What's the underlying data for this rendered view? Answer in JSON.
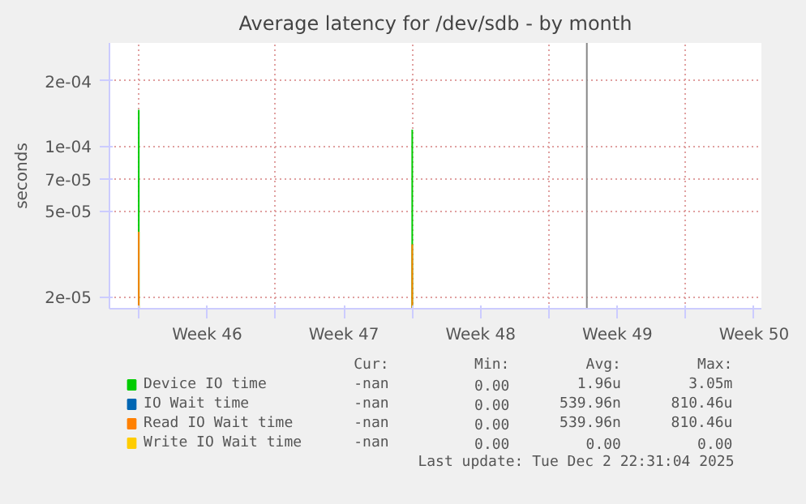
{
  "chart_data": {
    "type": "bar",
    "title": "Average latency for /dev/sdb - by month",
    "ylabel": "seconds",
    "x": [
      "2025-11-10T00:00",
      "2025-11-24T00:00"
    ],
    "series": [
      {
        "name": "Device IO time",
        "color": "#00cc00",
        "values": [
          0.000147,
          0.000119
        ]
      },
      {
        "name": "IO Wait time",
        "color": "#0066b3",
        "values": [
          null,
          null
        ]
      },
      {
        "name": "Read IO Wait time",
        "color": "#ff8000",
        "values": [
          4e-05,
          3.5e-05
        ]
      },
      {
        "name": "Write IO Wait time",
        "color": "#ffcc00",
        "values": [
          null,
          null
        ]
      }
    ],
    "log": "y",
    "ylim": [
      1.76e-05,
      0.0003
    ],
    "yticks": [
      {
        "value": 2e-05,
        "label": "2e-05"
      },
      {
        "value": 5e-05,
        "label": "5e-05"
      },
      {
        "value": 7e-05,
        "label": "7e-05"
      },
      {
        "value": 0.0001,
        "label": "1e-04"
      },
      {
        "value": 0.0002,
        "label": "2e-04"
      }
    ],
    "xlim": [
      "2025-11-08T12:00",
      "2025-12-11T21:00"
    ],
    "xticks": [
      {
        "value": "2025-11-10T00:00",
        "label": null
      },
      {
        "value": "2025-11-17T00:00",
        "label": null
      },
      {
        "value": "2025-11-24T00:00",
        "label": null
      },
      {
        "value": "2025-12-01T00:00",
        "label": null
      },
      {
        "value": "2025-12-08T00:00",
        "label": null
      },
      {
        "value": "2025-11-13T12:00",
        "label": "Week 46"
      },
      {
        "value": "2025-11-20T12:00",
        "label": "Week 47"
      },
      {
        "value": "2025-11-27T12:00",
        "label": "Week 48"
      },
      {
        "value": "2025-12-04T12:00",
        "label": "Week 49"
      },
      {
        "value": "2025-12-11T12:00",
        "label": "Week 50"
      }
    ],
    "ref_lines": [
      {
        "axis": "x",
        "value": "2025-12-02T22:31",
        "label": null,
        "color": "#888888"
      }
    ],
    "grid": true,
    "legend": "bottom",
    "annotations": [
      "Cur:",
      "Min:",
      "Avg:",
      "Max:",
      "-nan",
      "0.00",
      "1.96u",
      "3.05m",
      "-nan",
      "0.00",
      "539.96n",
      "810.46u",
      "-nan",
      "0.00",
      "539.96n",
      "810.46u",
      "-nan",
      "0.00",
      "0.00",
      "0.00",
      "Last update: Tue Dec  2 22:31:04 2025"
    ]
  }
}
